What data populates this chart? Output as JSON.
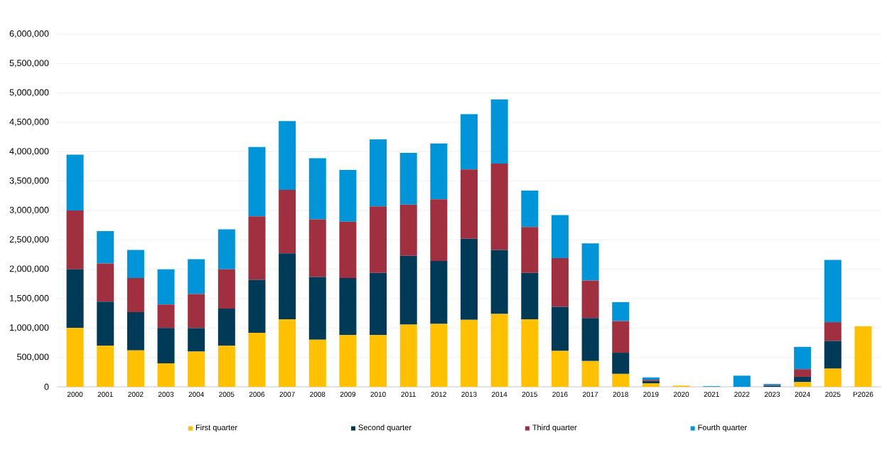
{
  "chart_data": {
    "type": "bar",
    "stacked": true,
    "categories": [
      "2000",
      "2001",
      "2002",
      "2003",
      "2004",
      "2005",
      "2006",
      "2007",
      "2008",
      "2009",
      "2010",
      "2011",
      "2012",
      "2013",
      "2014",
      "2015",
      "2016",
      "2017",
      "2018",
      "2019",
      "2020",
      "2021",
      "2022",
      "2023",
      "2024",
      "2025",
      "P2026"
    ],
    "series": [
      {
        "name": "First quarter",
        "color": "#ffc000",
        "values": [
          1000000,
          700000,
          620000,
          400000,
          600000,
          700000,
          920000,
          1150000,
          800000,
          880000,
          880000,
          1060000,
          1070000,
          1140000,
          1240000,
          1150000,
          610000,
          440000,
          220000,
          60000,
          20000,
          0,
          0,
          0,
          80000,
          310000,
          1030000
        ]
      },
      {
        "name": "Second quarter",
        "color": "#003a57",
        "values": [
          1000000,
          750000,
          650000,
          600000,
          400000,
          630000,
          900000,
          1120000,
          1070000,
          970000,
          1060000,
          1170000,
          1070000,
          1380000,
          1090000,
          790000,
          750000,
          730000,
          360000,
          40000,
          0,
          0,
          0,
          20000,
          90000,
          470000,
          null
        ]
      },
      {
        "name": "Third quarter",
        "color": "#a0303f",
        "values": [
          1000000,
          650000,
          580000,
          400000,
          580000,
          670000,
          1080000,
          1080000,
          980000,
          960000,
          1130000,
          870000,
          1050000,
          1180000,
          1470000,
          780000,
          830000,
          640000,
          540000,
          20000,
          0,
          0,
          0,
          10000,
          130000,
          320000,
          null
        ]
      },
      {
        "name": "Fourth quarter",
        "color": "#0095d8",
        "values": [
          950000,
          550000,
          480000,
          600000,
          590000,
          680000,
          1180000,
          1170000,
          1040000,
          880000,
          1140000,
          880000,
          950000,
          940000,
          1090000,
          620000,
          730000,
          630000,
          320000,
          40000,
          0,
          10000,
          190000,
          20000,
          380000,
          1060000,
          null
        ]
      }
    ],
    "ylim": [
      0,
      6000000
    ],
    "yticks": [
      {
        "value": 0,
        "label": "0"
      },
      {
        "value": 500000,
        "label": "500,000"
      },
      {
        "value": 1000000,
        "label": "1,000,000"
      },
      {
        "value": 1500000,
        "label": "1,500,000"
      },
      {
        "value": 2000000,
        "label": "2,000,000"
      },
      {
        "value": 2500000,
        "label": "2,500,000"
      },
      {
        "value": 3000000,
        "label": "3,000,000"
      },
      {
        "value": 3500000,
        "label": "3,500,000"
      },
      {
        "value": 4000000,
        "label": "4,000,000"
      },
      {
        "value": 4500000,
        "label": "4,500,000"
      },
      {
        "value": 5000000,
        "label": "5,000,000"
      },
      {
        "value": 5500000,
        "label": "5,500,000"
      },
      {
        "value": 6000000,
        "label": "6,000,000"
      }
    ],
    "grid": "y",
    "legend": "bottom"
  }
}
